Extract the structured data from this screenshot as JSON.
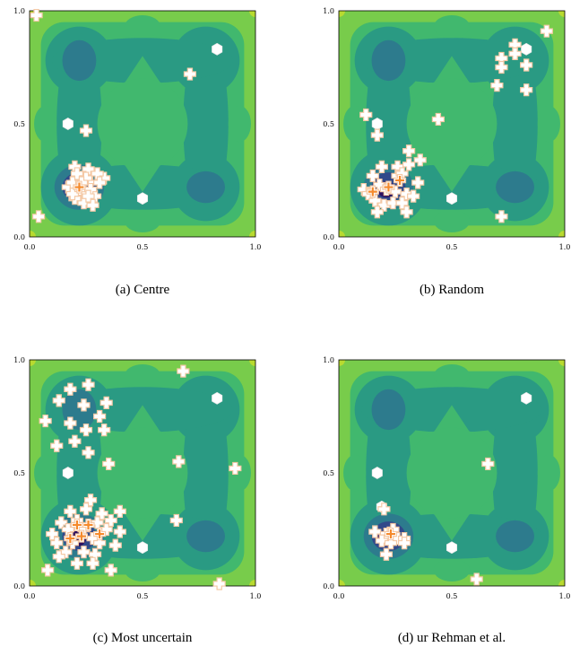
{
  "chart_data": [
    {
      "type": "scatter",
      "title": "",
      "caption": "(a) Centre",
      "xlim": [
        0,
        1
      ],
      "ylim": [
        0,
        1
      ],
      "xticks": [
        "0.0",
        "0.5",
        "1.0"
      ],
      "yticks": [
        "0.0",
        "0.5",
        "1.0"
      ],
      "background": "filled-contour",
      "hexagons": [
        [
          0.83,
          0.83
        ],
        [
          0.17,
          0.5
        ],
        [
          0.5,
          0.17
        ]
      ],
      "crosses_white": [
        [
          0.03,
          0.98
        ],
        [
          0.71,
          0.72
        ],
        [
          0.25,
          0.47
        ],
        [
          0.04,
          0.09
        ],
        [
          0.2,
          0.31
        ],
        [
          0.21,
          0.28
        ],
        [
          0.26,
          0.3
        ],
        [
          0.17,
          0.22
        ],
        [
          0.27,
          0.24
        ],
        [
          0.24,
          0.2
        ],
        [
          0.19,
          0.24
        ],
        [
          0.29,
          0.18
        ],
        [
          0.24,
          0.15
        ],
        [
          0.2,
          0.17
        ],
        [
          0.25,
          0.26
        ],
        [
          0.22,
          0.21
        ],
        [
          0.33,
          0.26
        ],
        [
          0.3,
          0.28
        ],
        [
          0.27,
          0.21
        ],
        [
          0.28,
          0.14
        ],
        [
          0.23,
          0.24
        ],
        [
          0.19,
          0.19
        ],
        [
          0.31,
          0.24
        ],
        [
          0.26,
          0.18
        ]
      ],
      "crosses_orange": [
        [
          0.22,
          0.22
        ]
      ]
    },
    {
      "type": "scatter",
      "title": "",
      "caption": "(b) Random",
      "xlim": [
        0,
        1
      ],
      "ylim": [
        0,
        1
      ],
      "xticks": [
        "0.0",
        "0.5",
        "1.0"
      ],
      "yticks": [
        "0.0",
        "0.5",
        "1.0"
      ],
      "background": "filled-contour",
      "hexagons": [
        [
          0.83,
          0.83
        ],
        [
          0.17,
          0.5
        ],
        [
          0.5,
          0.17
        ]
      ],
      "crosses_white": [
        [
          0.78,
          0.85
        ],
        [
          0.72,
          0.79
        ],
        [
          0.78,
          0.81
        ],
        [
          0.72,
          0.75
        ],
        [
          0.83,
          0.76
        ],
        [
          0.92,
          0.91
        ],
        [
          0.7,
          0.67
        ],
        [
          0.83,
          0.65
        ],
        [
          0.12,
          0.54
        ],
        [
          0.17,
          0.45
        ],
        [
          0.44,
          0.52
        ],
        [
          0.31,
          0.38
        ],
        [
          0.36,
          0.34
        ],
        [
          0.19,
          0.31
        ],
        [
          0.26,
          0.31
        ],
        [
          0.31,
          0.32
        ],
        [
          0.15,
          0.27
        ],
        [
          0.26,
          0.27
        ],
        [
          0.28,
          0.28
        ],
        [
          0.35,
          0.24
        ],
        [
          0.11,
          0.21
        ],
        [
          0.18,
          0.23
        ],
        [
          0.13,
          0.19
        ],
        [
          0.21,
          0.21
        ],
        [
          0.25,
          0.2
        ],
        [
          0.3,
          0.19
        ],
        [
          0.33,
          0.18
        ],
        [
          0.16,
          0.16
        ],
        [
          0.2,
          0.14
        ],
        [
          0.24,
          0.15
        ],
        [
          0.28,
          0.15
        ],
        [
          0.17,
          0.11
        ],
        [
          0.3,
          0.11
        ],
        [
          0.72,
          0.09
        ]
      ],
      "crosses_orange": [
        [
          0.27,
          0.25
        ],
        [
          0.22,
          0.22
        ],
        [
          0.15,
          0.2
        ]
      ]
    },
    {
      "type": "scatter",
      "title": "",
      "caption": "(c) Most uncertain",
      "xlim": [
        0,
        1
      ],
      "ylim": [
        0,
        1
      ],
      "xticks": [
        "0.0",
        "0.5",
        "1.0"
      ],
      "yticks": [
        "0.0",
        "0.5",
        "1.0"
      ],
      "background": "filled-contour",
      "hexagons": [
        [
          0.83,
          0.83
        ],
        [
          0.17,
          0.5
        ],
        [
          0.5,
          0.17
        ]
      ],
      "crosses_white": [
        [
          0.68,
          0.95
        ],
        [
          0.18,
          0.87
        ],
        [
          0.26,
          0.89
        ],
        [
          0.13,
          0.82
        ],
        [
          0.24,
          0.8
        ],
        [
          0.34,
          0.81
        ],
        [
          0.07,
          0.73
        ],
        [
          0.18,
          0.72
        ],
        [
          0.25,
          0.69
        ],
        [
          0.31,
          0.75
        ],
        [
          0.33,
          0.69
        ],
        [
          0.2,
          0.64
        ],
        [
          0.12,
          0.62
        ],
        [
          0.26,
          0.59
        ],
        [
          0.35,
          0.54
        ],
        [
          0.66,
          0.55
        ],
        [
          0.91,
          0.52
        ],
        [
          0.27,
          0.38
        ],
        [
          0.25,
          0.34
        ],
        [
          0.18,
          0.33
        ],
        [
          0.32,
          0.32
        ],
        [
          0.4,
          0.33
        ],
        [
          0.14,
          0.28
        ],
        [
          0.21,
          0.29
        ],
        [
          0.3,
          0.28
        ],
        [
          0.36,
          0.29
        ],
        [
          0.65,
          0.29
        ],
        [
          0.1,
          0.23
        ],
        [
          0.17,
          0.25
        ],
        [
          0.24,
          0.25
        ],
        [
          0.34,
          0.25
        ],
        [
          0.4,
          0.24
        ],
        [
          0.12,
          0.19
        ],
        [
          0.19,
          0.19
        ],
        [
          0.28,
          0.21
        ],
        [
          0.31,
          0.19
        ],
        [
          0.38,
          0.18
        ],
        [
          0.16,
          0.15
        ],
        [
          0.24,
          0.15
        ],
        [
          0.13,
          0.13
        ],
        [
          0.29,
          0.14
        ],
        [
          0.21,
          0.1
        ],
        [
          0.28,
          0.1
        ],
        [
          0.08,
          0.07
        ],
        [
          0.36,
          0.07
        ],
        [
          0.84,
          0.01
        ]
      ],
      "crosses_orange": [
        [
          0.23,
          0.22
        ],
        [
          0.18,
          0.21
        ],
        [
          0.26,
          0.27
        ],
        [
          0.21,
          0.27
        ],
        [
          0.31,
          0.23
        ]
      ]
    },
    {
      "type": "scatter",
      "title": "",
      "caption": "(d) ur Rehman et al.",
      "xlim": [
        0,
        1
      ],
      "ylim": [
        0,
        1
      ],
      "xticks": [
        "0.0",
        "0.5",
        "1.0"
      ],
      "yticks": [
        "0.0",
        "0.5",
        "1.0"
      ],
      "background": "filled-contour",
      "hexagons": [
        [
          0.83,
          0.83
        ],
        [
          0.17,
          0.5
        ],
        [
          0.5,
          0.17
        ],
        [
          0.19,
          0.35
        ]
      ],
      "crosses_white": [
        [
          0.66,
          0.54
        ],
        [
          0.2,
          0.34
        ],
        [
          0.16,
          0.24
        ],
        [
          0.21,
          0.23
        ],
        [
          0.24,
          0.25
        ],
        [
          0.26,
          0.21
        ],
        [
          0.29,
          0.21
        ],
        [
          0.19,
          0.2
        ],
        [
          0.23,
          0.19
        ],
        [
          0.29,
          0.19
        ],
        [
          0.21,
          0.14
        ],
        [
          0.61,
          0.03
        ]
      ],
      "crosses_orange": [
        [
          0.23,
          0.23
        ]
      ]
    }
  ],
  "colors": {
    "contour_levels": [
      "#2d0f5e",
      "#31498a",
      "#2d7b8d",
      "#2a9a83",
      "#41b86e",
      "#78cc4b",
      "#b8da30",
      "#fde725"
    ],
    "marker_white": "#ffffff",
    "marker_edge": "#f4c9a6",
    "marker_orange": "#f58a2c"
  }
}
